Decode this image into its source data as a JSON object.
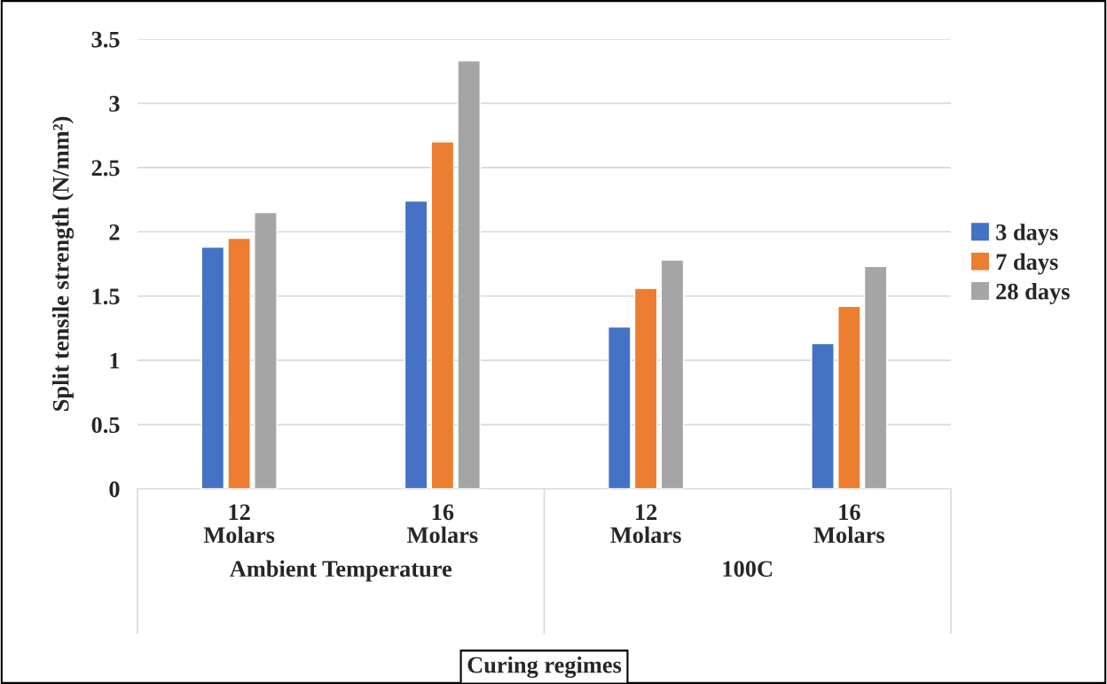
{
  "chart_data": {
    "type": "bar",
    "categories": [
      "12 Molars",
      "16 Molars",
      "12 Molars",
      "16 Molars"
    ],
    "series": [
      {
        "name": "3 days",
        "color": "#4472c4",
        "values": [
          1.88,
          2.24,
          1.26,
          1.13
        ]
      },
      {
        "name": "7 days",
        "color": "#ed7d31",
        "values": [
          1.95,
          2.7,
          1.56,
          1.42
        ]
      },
      {
        "name": "28 days",
        "color": "#a5a5a5",
        "values": [
          2.15,
          3.33,
          1.78,
          1.73
        ]
      }
    ],
    "ylabel": "Split tensile strength (N/mm²)",
    "xlabel": "Curing regimes",
    "annotations": [
      "Ambient Temperature",
      "100C"
    ],
    "ylim": [
      0,
      3.5
    ],
    "yticks": [
      0,
      0.5,
      1,
      1.5,
      2,
      2.5,
      3,
      3.5
    ],
    "grid": "y",
    "legend": "right"
  }
}
